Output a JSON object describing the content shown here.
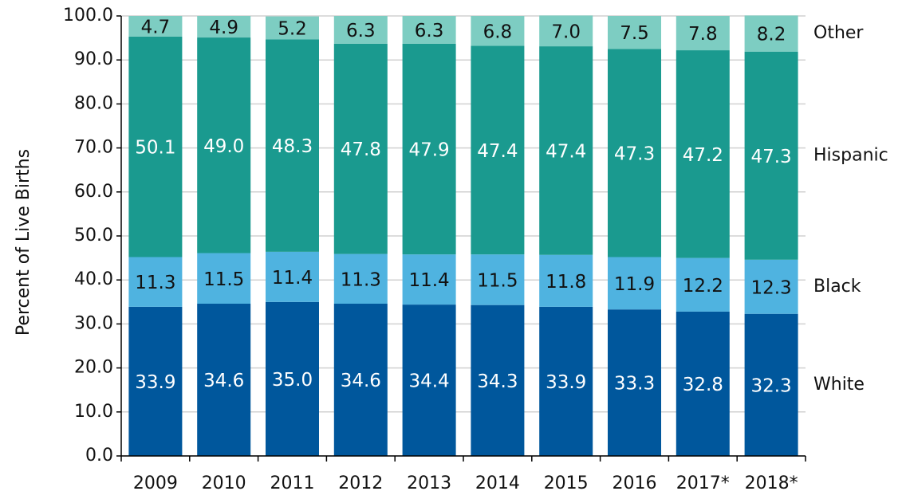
{
  "chart_data": {
    "type": "stacked_bar",
    "y_label": "Percent of Live Births",
    "categories": [
      "2009",
      "2010",
      "2011",
      "2012",
      "2013",
      "2014",
      "2015",
      "2016",
      "2017*",
      "2018*"
    ],
    "series": [
      {
        "name": "White",
        "color": "#00579c",
        "label_color": "#ffffff",
        "values": [
          33.9,
          34.6,
          35.0,
          34.6,
          34.4,
          34.3,
          33.9,
          33.3,
          32.8,
          32.3
        ],
        "value_labels": [
          "33.9",
          "34.6",
          "35.0",
          "34.6",
          "34.4",
          "34.3",
          "33.9",
          "33.3",
          "32.8",
          "32.3"
        ]
      },
      {
        "name": "Black",
        "color": "#4fb3e0",
        "label_color": "#111111",
        "values": [
          11.3,
          11.5,
          11.4,
          11.3,
          11.4,
          11.5,
          11.8,
          11.9,
          12.2,
          12.3
        ],
        "value_labels": [
          "11.3",
          "11.5",
          "11.4",
          "11.3",
          "11.4",
          "11.5",
          "11.8",
          "11.9",
          "12.2",
          "12.3"
        ]
      },
      {
        "name": "Hispanic",
        "color": "#1a9a8f",
        "label_color": "#ffffff",
        "values": [
          50.1,
          49.0,
          48.3,
          47.8,
          47.9,
          47.4,
          47.4,
          47.3,
          47.2,
          47.3
        ],
        "value_labels": [
          "50.1",
          "49.0",
          "48.3",
          "47.8",
          "47.9",
          "47.4",
          "47.4",
          "47.3",
          "47.2",
          "47.3"
        ]
      },
      {
        "name": "Other",
        "color": "#7dcdc2",
        "label_color": "#111111",
        "values": [
          4.7,
          4.9,
          5.2,
          6.3,
          6.3,
          6.8,
          7.0,
          7.5,
          7.8,
          8.2
        ],
        "value_labels": [
          "4.7",
          "4.9",
          "5.2",
          "6.3",
          "6.3",
          "6.8",
          "7.0",
          "7.5",
          "7.8",
          "8.2"
        ]
      }
    ],
    "ylim": [
      0,
      100
    ],
    "yticks": [
      {
        "value": 0,
        "label": "0.0"
      },
      {
        "value": 10,
        "label": "10.0"
      },
      {
        "value": 20,
        "label": "20.0"
      },
      {
        "value": 30,
        "label": "30.0"
      },
      {
        "value": 40,
        "label": "40.0"
      },
      {
        "value": 50,
        "label": "50.0"
      },
      {
        "value": 60,
        "label": "60.0"
      },
      {
        "value": 70,
        "label": "70.0"
      },
      {
        "value": 80,
        "label": "80.0"
      },
      {
        "value": 90,
        "label": "90.0"
      },
      {
        "value": 100,
        "label": "100.0"
      }
    ],
    "grid": true
  }
}
